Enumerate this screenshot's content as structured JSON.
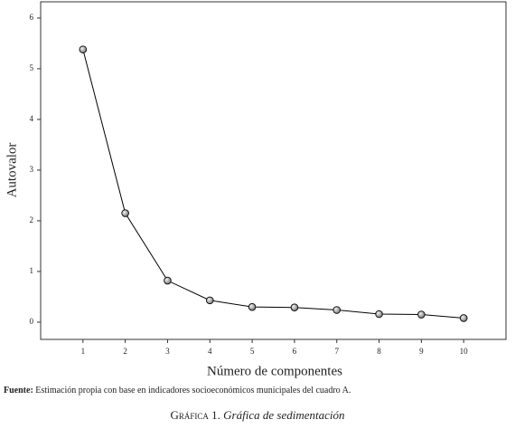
{
  "chart_data": {
    "type": "line",
    "x": [
      1,
      2,
      3,
      4,
      5,
      6,
      7,
      8,
      9,
      10
    ],
    "series": [
      {
        "name": "Autovalor",
        "color": "#000000",
        "values": [
          5.38,
          2.15,
          0.82,
          0.43,
          0.3,
          0.29,
          0.24,
          0.16,
          0.15,
          0.08
        ]
      }
    ],
    "xlim": [
      0,
      11
    ],
    "ylim": [
      -0.34,
      6.32
    ],
    "xticks": [
      1,
      2,
      3,
      4,
      5,
      6,
      7,
      8,
      9,
      10
    ],
    "yticks": [
      0,
      1,
      2,
      3,
      4,
      5,
      6
    ],
    "ylabel": "Autovalor",
    "xlabel": "Número de componentes",
    "source_label": "Fuente:",
    "source": "Estimación propia con base en indicadores socioeconómicos municipales del cuadro A.",
    "caption_label": "Gráfica 1.",
    "caption": "Gráfica de sedimentación"
  }
}
